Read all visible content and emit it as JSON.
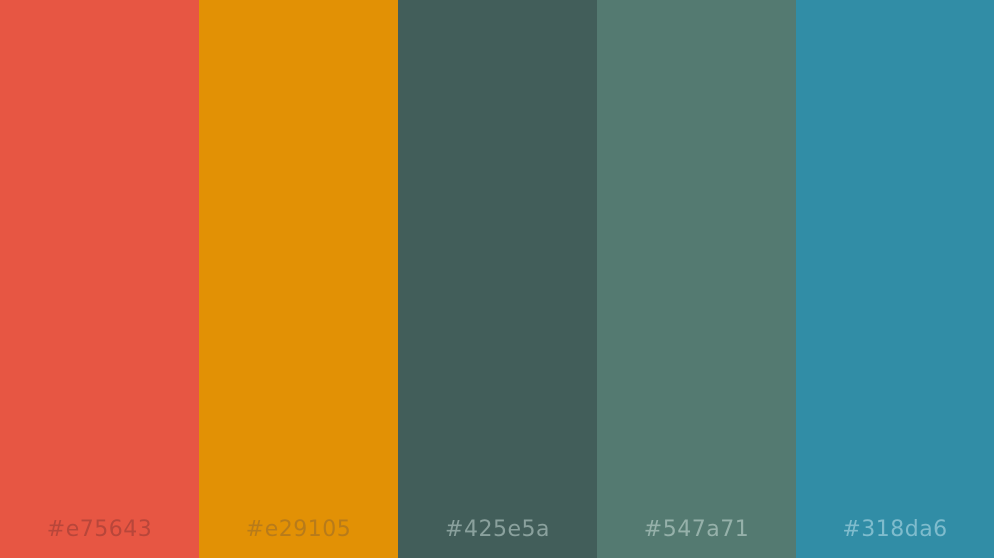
{
  "palette": {
    "swatches": [
      {
        "label": "#e75643",
        "color": "#e75643",
        "text_color": "#b8463a"
      },
      {
        "label": "#e29105",
        "color": "#e29105",
        "text_color": "#b87b1a"
      },
      {
        "label": "#425e5a",
        "color": "#425e5a",
        "text_color": "#8aa19d"
      },
      {
        "label": "#547a71",
        "color": "#547a71",
        "text_color": "#96b1aa"
      },
      {
        "label": "#318da6",
        "color": "#318da6",
        "text_color": "#7fbccd"
      }
    ]
  }
}
